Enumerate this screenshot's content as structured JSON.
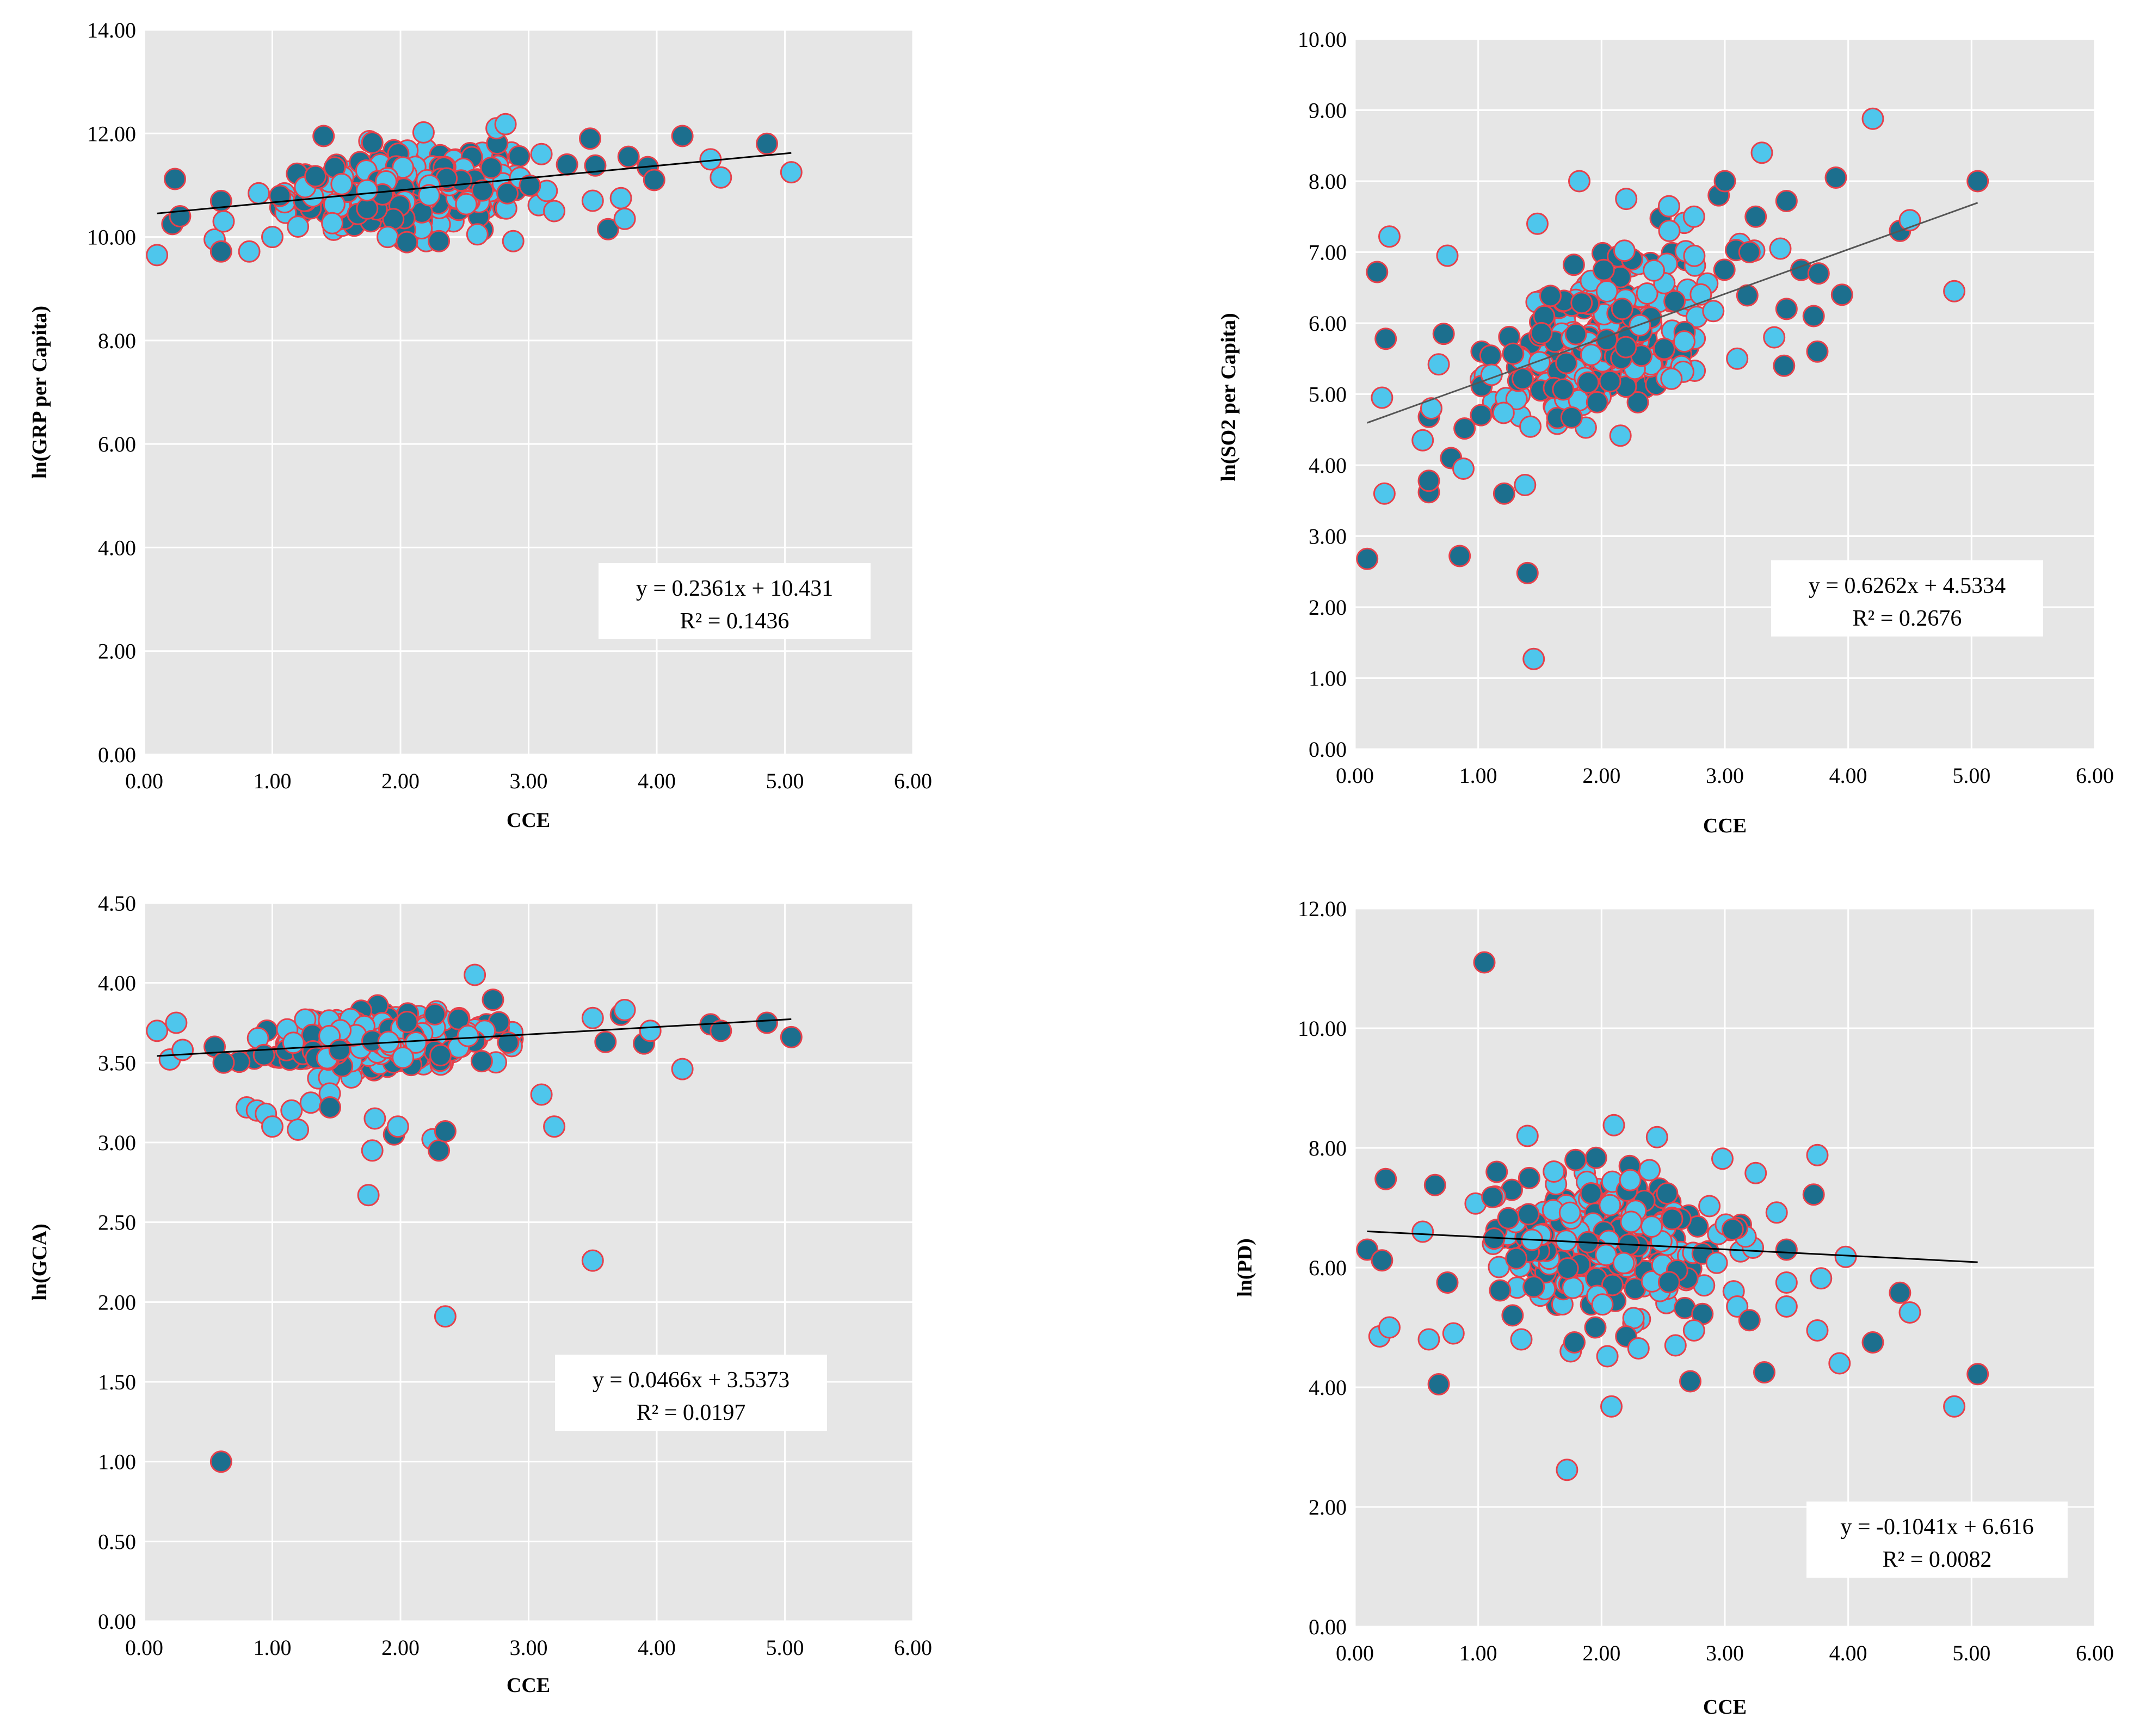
{
  "chart_data": [
    {
      "type": "scatter",
      "id": "grp",
      "title": "",
      "xlabel": "CCE",
      "ylabel": "ln(GRP per Capita)",
      "xlim": [
        0,
        6
      ],
      "ylim": [
        0,
        14
      ],
      "x_ticks": [
        "0.00",
        "1.00",
        "2.00",
        "3.00",
        "4.00",
        "5.00",
        "6.00"
      ],
      "y_ticks": [
        "0.00",
        "2.00",
        "4.00",
        "6.00",
        "8.00",
        "10.00",
        "12.00",
        "14.00"
      ],
      "grid": true,
      "trendline": {
        "slope": 0.2361,
        "intercept": 10.431,
        "x_range": [
          0.1,
          5.05
        ]
      },
      "equation": "y = 0.2361x + 10.431",
      "r_squared": "R² = 0.1436",
      "cluster": {
        "x_center": 2.0,
        "x_spread": 0.8,
        "y_spread": 0.45,
        "count": 300
      },
      "points": [
        [
          0.1,
          9.65
        ],
        [
          0.22,
          10.25
        ],
        [
          0.24,
          11.12
        ],
        [
          0.28,
          10.4
        ],
        [
          0.55,
          9.95
        ],
        [
          0.6,
          9.72
        ],
        [
          0.62,
          10.3
        ],
        [
          0.82,
          9.72
        ],
        [
          1.0,
          10.0
        ],
        [
          1.2,
          10.2
        ],
        [
          1.4,
          11.95
        ],
        [
          1.78,
          11.82
        ],
        [
          1.9,
          10.0
        ],
        [
          2.05,
          9.9
        ],
        [
          2.18,
          12.02
        ],
        [
          2.3,
          9.92
        ],
        [
          2.6,
          10.05
        ],
        [
          2.75,
          12.1
        ],
        [
          2.82,
          12.18
        ],
        [
          2.88,
          9.92
        ],
        [
          3.1,
          11.6
        ],
        [
          3.2,
          10.5
        ],
        [
          3.3,
          11.4
        ],
        [
          3.48,
          11.9
        ],
        [
          3.5,
          10.7
        ],
        [
          3.52,
          11.38
        ],
        [
          3.62,
          10.15
        ],
        [
          3.72,
          10.75
        ],
        [
          3.75,
          10.35
        ],
        [
          3.78,
          11.55
        ],
        [
          3.93,
          11.35
        ],
        [
          3.98,
          11.1
        ],
        [
          4.2,
          11.95
        ],
        [
          4.42,
          11.5
        ],
        [
          4.5,
          11.15
        ],
        [
          4.86,
          11.8
        ],
        [
          5.05,
          11.25
        ]
      ]
    },
    {
      "type": "scatter",
      "id": "so2",
      "title": "",
      "xlabel": "CCE",
      "ylabel": "ln(SO2 per Capita)",
      "xlim": [
        0,
        6
      ],
      "ylim": [
        0,
        10
      ],
      "x_ticks": [
        "0.00",
        "1.00",
        "2.00",
        "3.00",
        "4.00",
        "5.00",
        "6.00"
      ],
      "y_ticks": [
        "0.00",
        "1.00",
        "2.00",
        "3.00",
        "4.00",
        "5.00",
        "6.00",
        "7.00",
        "8.00",
        "9.00",
        "10.00"
      ],
      "grid": true,
      "trendline": {
        "slope": 0.6262,
        "intercept": 4.5334,
        "x_range": [
          0.1,
          5.05
        ]
      },
      "equation": "y = 0.6262x + 4.5334",
      "r_squared": "R² = 0.2676",
      "cluster": {
        "x_center": 2.0,
        "x_spread": 0.8,
        "y_spread": 0.75,
        "count": 300
      },
      "points": [
        [
          0.1,
          2.68
        ],
        [
          0.18,
          6.72
        ],
        [
          0.22,
          4.95
        ],
        [
          0.24,
          3.6
        ],
        [
          0.25,
          5.78
        ],
        [
          0.28,
          7.22
        ],
        [
          0.55,
          4.35
        ],
        [
          0.6,
          3.78
        ],
        [
          0.62,
          4.8
        ],
        [
          0.68,
          5.42
        ],
        [
          0.72,
          5.85
        ],
        [
          0.75,
          6.95
        ],
        [
          0.78,
          4.1
        ],
        [
          0.85,
          2.72
        ],
        [
          0.88,
          3.95
        ],
        [
          1.4,
          2.48
        ],
        [
          1.45,
          1.27
        ],
        [
          1.38,
          3.72
        ],
        [
          1.48,
          7.4
        ],
        [
          1.82,
          8.0
        ],
        [
          2.2,
          7.75
        ],
        [
          2.55,
          7.3
        ],
        [
          2.75,
          7.5
        ],
        [
          2.95,
          7.8
        ],
        [
          3.0,
          8.0
        ],
        [
          3.1,
          5.5
        ],
        [
          3.2,
          7.0
        ],
        [
          3.25,
          7.5
        ],
        [
          3.3,
          8.4
        ],
        [
          3.4,
          5.8
        ],
        [
          3.45,
          7.05
        ],
        [
          3.48,
          5.4
        ],
        [
          3.5,
          7.72
        ],
        [
          3.5,
          6.2
        ],
        [
          3.62,
          6.75
        ],
        [
          3.72,
          6.1
        ],
        [
          3.75,
          5.6
        ],
        [
          3.76,
          6.7
        ],
        [
          3.9,
          8.05
        ],
        [
          3.95,
          6.4
        ],
        [
          4.2,
          8.88
        ],
        [
          4.42,
          7.3
        ],
        [
          4.5,
          7.45
        ],
        [
          4.86,
          6.45
        ],
        [
          5.05,
          8.0
        ]
      ]
    },
    {
      "type": "scatter",
      "id": "gca",
      "title": "",
      "xlabel": "CCE",
      "ylabel": "ln(GCA)",
      "xlim": [
        0,
        6
      ],
      "ylim": [
        0,
        4.5
      ],
      "x_ticks": [
        "0.00",
        "1.00",
        "2.00",
        "3.00",
        "4.00",
        "5.00",
        "6.00"
      ],
      "y_ticks": [
        "0.00",
        "0.50",
        "1.00",
        "1.50",
        "2.00",
        "2.50",
        "3.00",
        "3.50",
        "4.00",
        "4.50"
      ],
      "grid": true,
      "trendline": {
        "slope": 0.0466,
        "intercept": 3.5373,
        "x_range": [
          0.1,
          5.05
        ]
      },
      "equation": "y = 0.0466x + 3.5373",
      "r_squared": "R² = 0.0197",
      "cluster": {
        "x_center": 1.9,
        "x_spread": 0.8,
        "y_spread": 0.12,
        "count": 300
      },
      "points": [
        [
          0.1,
          3.7
        ],
        [
          0.2,
          3.52
        ],
        [
          0.25,
          3.75
        ],
        [
          0.3,
          3.58
        ],
        [
          0.55,
          3.6
        ],
        [
          0.6,
          1.0
        ],
        [
          0.62,
          3.5
        ],
        [
          0.8,
          3.22
        ],
        [
          0.88,
          3.2
        ],
        [
          0.95,
          3.18
        ],
        [
          1.0,
          3.1
        ],
        [
          1.15,
          3.2
        ],
        [
          1.2,
          3.08
        ],
        [
          1.3,
          3.25
        ],
        [
          1.45,
          3.22
        ],
        [
          1.75,
          2.67
        ],
        [
          1.78,
          2.95
        ],
        [
          1.8,
          3.15
        ],
        [
          1.95,
          3.05
        ],
        [
          1.98,
          3.1
        ],
        [
          2.25,
          3.02
        ],
        [
          2.3,
          2.95
        ],
        [
          2.35,
          3.07
        ],
        [
          2.35,
          1.91
        ],
        [
          2.58,
          4.05
        ],
        [
          3.1,
          3.3
        ],
        [
          3.2,
          3.1
        ],
        [
          3.5,
          2.26
        ],
        [
          3.5,
          3.78
        ],
        [
          3.6,
          3.63
        ],
        [
          3.72,
          3.8
        ],
        [
          3.75,
          3.83
        ],
        [
          3.9,
          3.62
        ],
        [
          3.95,
          3.7
        ],
        [
          4.2,
          3.46
        ],
        [
          4.42,
          3.74
        ],
        [
          4.5,
          3.7
        ],
        [
          4.86,
          3.75
        ],
        [
          5.05,
          3.66
        ]
      ]
    },
    {
      "type": "scatter",
      "id": "pd",
      "title": "",
      "xlabel": "CCE",
      "ylabel": "ln(PD)",
      "xlim": [
        0,
        6
      ],
      "ylim": [
        0,
        12
      ],
      "x_ticks": [
        "0.00",
        "1.00",
        "2.00",
        "3.00",
        "4.00",
        "5.00",
        "6.00"
      ],
      "y_ticks": [
        "0.00",
        "2.00",
        "4.00",
        "6.00",
        "8.00",
        "10.00",
        "12.00"
      ],
      "grid": true,
      "trendline": {
        "slope": -0.1041,
        "intercept": 6.616,
        "x_range": [
          0.1,
          5.05
        ]
      },
      "equation": "y = -0.1041x + 6.616",
      "r_squared": "R² = 0.0082",
      "cluster": {
        "x_center": 2.0,
        "x_spread": 0.8,
        "y_spread": 0.75,
        "count": 300
      },
      "points": [
        [
          0.1,
          6.3
        ],
        [
          0.2,
          4.85
        ],
        [
          0.22,
          6.12
        ],
        [
          0.25,
          7.48
        ],
        [
          0.28,
          5.0
        ],
        [
          0.55,
          6.6
        ],
        [
          0.6,
          4.8
        ],
        [
          0.65,
          7.38
        ],
        [
          0.68,
          4.05
        ],
        [
          0.75,
          5.75
        ],
        [
          0.8,
          4.9
        ],
        [
          1.05,
          11.1
        ],
        [
          1.15,
          7.6
        ],
        [
          1.35,
          4.8
        ],
        [
          1.4,
          8.2
        ],
        [
          1.72,
          2.62
        ],
        [
          1.75,
          4.6
        ],
        [
          1.78,
          4.75
        ],
        [
          1.95,
          5.0
        ],
        [
          2.08,
          3.68
        ],
        [
          2.1,
          8.38
        ],
        [
          2.2,
          4.85
        ],
        [
          2.3,
          4.65
        ],
        [
          2.45,
          8.18
        ],
        [
          2.6,
          4.7
        ],
        [
          2.72,
          4.1
        ],
        [
          2.75,
          4.95
        ],
        [
          2.98,
          7.82
        ],
        [
          3.1,
          5.35
        ],
        [
          3.2,
          5.12
        ],
        [
          3.25,
          7.58
        ],
        [
          3.32,
          4.25
        ],
        [
          3.42,
          6.92
        ],
        [
          3.5,
          6.3
        ],
        [
          3.5,
          5.75
        ],
        [
          3.5,
          5.35
        ],
        [
          3.72,
          7.22
        ],
        [
          3.75,
          7.88
        ],
        [
          3.75,
          4.95
        ],
        [
          3.78,
          5.82
        ],
        [
          3.93,
          4.4
        ],
        [
          3.98,
          6.18
        ],
        [
          4.2,
          4.75
        ],
        [
          4.42,
          5.58
        ],
        [
          4.5,
          5.25
        ],
        [
          4.86,
          3.68
        ],
        [
          5.05,
          4.22
        ]
      ]
    }
  ],
  "colors": {
    "plot_bg": "#e6e6e6",
    "grid": "#ffffff",
    "point_light": "#4ec6ec",
    "point_dark": "#1c6f8e",
    "point_stroke": "#e8404a",
    "trend": "#000000",
    "trend_so2": "#555555"
  }
}
